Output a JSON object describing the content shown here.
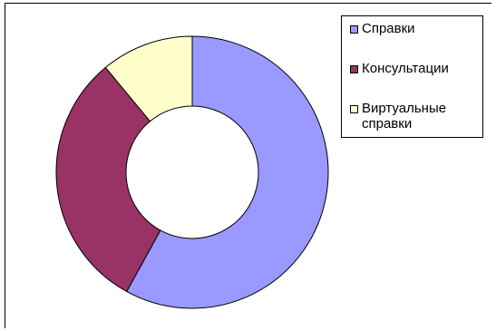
{
  "chart_data": {
    "type": "pie",
    "title": "",
    "donut": true,
    "categories": [
      "Справки",
      "Консультации",
      "Виртуальные справки"
    ],
    "values": [
      58,
      31,
      11
    ],
    "colors": [
      "#9999ff",
      "#993366",
      "#ffffcc"
    ],
    "legend_position": "top-right",
    "legend_labels": [
      "Справки",
      "Консультации",
      "Виртуальные\nсправки"
    ]
  }
}
